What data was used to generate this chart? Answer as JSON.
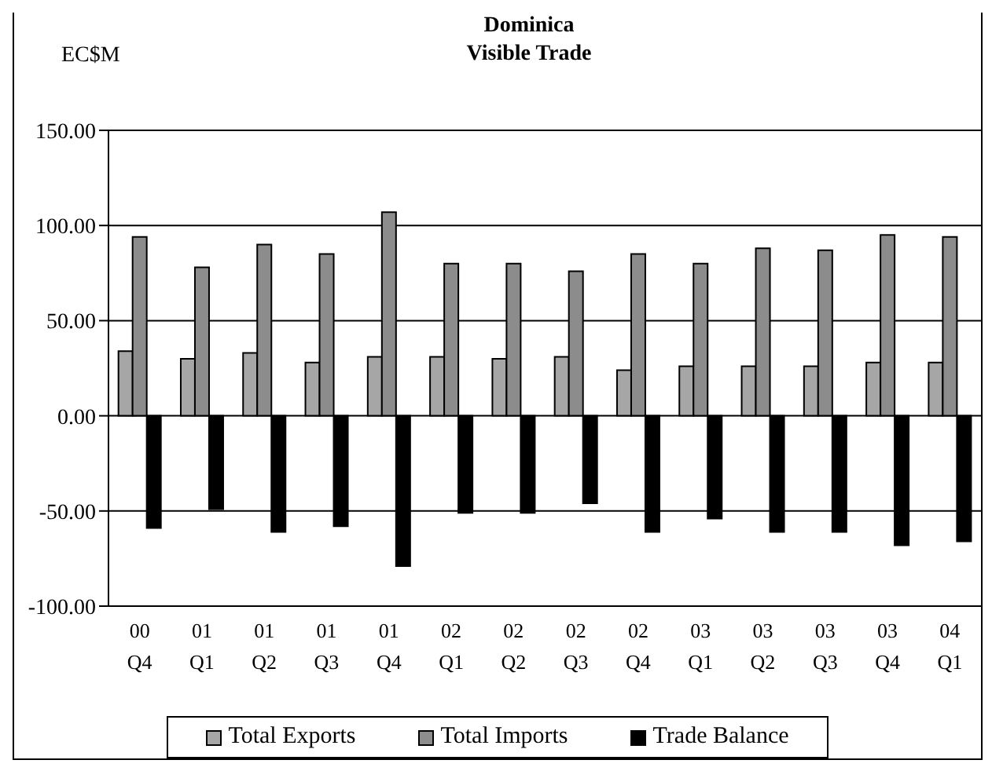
{
  "chart_data": {
    "type": "bar",
    "title": "Dominica",
    "subtitle": "Visible Trade",
    "ylabel": "EC$M",
    "categories": [
      "00 Q4",
      "01 Q1",
      "01 Q2",
      "01 Q3",
      "01 Q4",
      "02 Q1",
      "02 Q2",
      "02 Q3",
      "02 Q4",
      "03 Q1",
      "03 Q2",
      "03 Q3",
      "03 Q4",
      "04 Q1"
    ],
    "series": [
      {
        "name": "Total Exports",
        "color": "#a6a6a6",
        "values": [
          34,
          30,
          33,
          28,
          31,
          31,
          30,
          31,
          24,
          26,
          26,
          26,
          28,
          28
        ]
      },
      {
        "name": "Total Imports",
        "color": "#8c8c8c",
        "values": [
          94,
          78,
          90,
          85,
          107,
          80,
          80,
          76,
          85,
          80,
          88,
          87,
          95,
          94
        ]
      },
      {
        "name": "Trade Balance",
        "color": "#000000",
        "values": [
          -59,
          -49,
          -61,
          -58,
          -79,
          -51,
          -51,
          -46,
          -61,
          -54,
          -61,
          -61,
          -68,
          -66
        ]
      }
    ],
    "ylim": [
      -100,
      150
    ],
    "yticks": [
      {
        "value": -100,
        "label": "-100.00"
      },
      {
        "value": -50,
        "label": "-50.00"
      },
      {
        "value": 0,
        "label": "0.00"
      },
      {
        "value": 50,
        "label": "50.00"
      },
      {
        "value": 100,
        "label": "100.00"
      },
      {
        "value": 150,
        "label": "150.00"
      }
    ],
    "grid": "y",
    "legend": "bottom"
  }
}
